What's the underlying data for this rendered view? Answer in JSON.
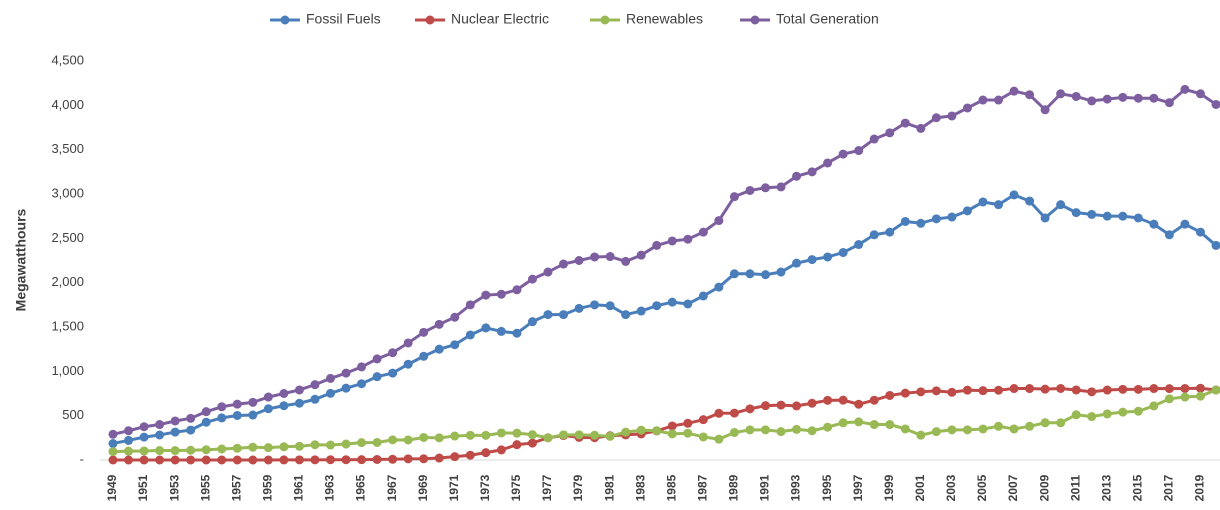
{
  "chart_data": {
    "type": "line",
    "y_label": "Megawatthours",
    "categories": [
      "1949",
      null,
      "1951",
      null,
      "1953",
      null,
      "1955",
      null,
      "1957",
      null,
      "1959",
      null,
      "1961",
      null,
      "1963",
      null,
      "1965",
      null,
      "1967",
      null,
      "1969",
      null,
      "1971",
      null,
      "1973",
      null,
      "1975",
      null,
      "1977",
      null,
      "1979",
      null,
      "1981",
      null,
      "1983",
      null,
      "1985",
      null,
      "1987",
      null,
      "1989",
      null,
      "1991",
      null,
      "1993",
      null,
      "1995",
      null,
      "1997",
      null,
      "1999",
      null,
      "2001",
      null,
      "2003",
      null,
      "2005",
      null,
      "2007",
      null,
      "2009",
      null,
      "2011",
      null,
      "2013",
      null,
      "2015",
      null,
      "2017",
      null,
      "2019",
      null
    ],
    "series": [
      {
        "name": "Fossil Fuels",
        "color": "#4a7ebb",
        "values": [
          186,
          221,
          258,
          282,
          315,
          337,
          426,
          475,
          502,
          507,
          578,
          612,
          640,
          685,
          752,
          810,
          860,
          940,
          980,
          1080,
          1170,
          1250,
          1300,
          1410,
          1490,
          1450,
          1430,
          1560,
          1640,
          1640,
          1710,
          1750,
          1740,
          1640,
          1680,
          1740,
          1780,
          1760,
          1850,
          1950,
          2100,
          2100,
          2090,
          2120,
          2220,
          2260,
          2290,
          2340,
          2430,
          2540,
          2570,
          2690,
          2670,
          2720,
          2740,
          2810,
          2910,
          2880,
          2990,
          2920,
          2730,
          2880,
          2790,
          2770,
          2750,
          2750,
          2730,
          2660,
          2540,
          2660,
          2570,
          2420
        ]
      },
      {
        "name": "Nuclear Electric",
        "color": "#be4b48",
        "values": [
          0,
          0,
          0,
          0,
          0,
          0,
          0,
          0,
          0,
          0,
          0,
          1,
          2,
          2,
          3,
          3,
          4,
          6,
          8,
          13,
          14,
          22,
          38,
          54,
          83,
          114,
          173,
          191,
          251,
          276,
          255,
          251,
          273,
          283,
          294,
          328,
          384,
          414,
          455,
          527,
          529,
          577,
          613,
          619,
          610,
          640,
          673,
          675,
          629,
          674,
          728,
          754,
          769,
          780,
          764,
          788,
          782,
          787,
          806,
          806,
          799,
          807,
          790,
          769,
          789,
          797,
          797,
          806,
          805,
          807,
          809,
          790
        ]
      },
      {
        "name": "Renewables",
        "color": "#98b954",
        "values": [
          95,
          100,
          102,
          107,
          107,
          110,
          116,
          124,
          132,
          144,
          140,
          149,
          155,
          172,
          169,
          180,
          196,
          198,
          227,
          226,
          254,
          250,
          270,
          278,
          278,
          305,
          303,
          286,
          250,
          284,
          284,
          279,
          267,
          314,
          336,
          330,
          295,
          302,
          260,
          235,
          310,
          340,
          340,
          320,
          345,
          330,
          370,
          420,
          430,
          400,
          400,
          350,
          280,
          320,
          340,
          340,
          350,
          380,
          350,
          380,
          420,
          420,
          510,
          490,
          520,
          540,
          550,
          610,
          690,
          710,
          720,
          790
        ]
      },
      {
        "name": "Total Generation",
        "color": "#7d5fa0",
        "values": [
          290,
          330,
          375,
          400,
          440,
          470,
          545,
          600,
          630,
          650,
          710,
          750,
          790,
          850,
          920,
          980,
          1050,
          1140,
          1210,
          1320,
          1440,
          1530,
          1610,
          1750,
          1860,
          1870,
          1920,
          2040,
          2120,
          2210,
          2250,
          2290,
          2295,
          2240,
          2310,
          2420,
          2470,
          2490,
          2570,
          2700,
          2970,
          3040,
          3070,
          3080,
          3200,
          3250,
          3350,
          3450,
          3490,
          3620,
          3690,
          3800,
          3740,
          3860,
          3880,
          3970,
          4060,
          4060,
          4160,
          4120,
          3950,
          4130,
          4100,
          4050,
          4070,
          4090,
          4080,
          4080,
          4030,
          4180,
          4130,
          4010
        ]
      }
    ],
    "ylim": [
      0,
      4500
    ],
    "yticks": [
      {
        "value": 0,
        "label": "-"
      },
      500,
      {
        "value": 1000,
        "label": "1,000"
      },
      {
        "value": 1500,
        "label": "1,500"
      },
      {
        "value": 2000,
        "label": "2,000"
      },
      {
        "value": 2500,
        "label": "2,500"
      },
      {
        "value": 3000,
        "label": "3,000"
      },
      {
        "value": 3500,
        "label": "3,500"
      },
      {
        "value": 4000,
        "label": "4,000"
      },
      {
        "value": 4500,
        "label": "4,500"
      }
    ],
    "grid": false,
    "legend": "top"
  }
}
